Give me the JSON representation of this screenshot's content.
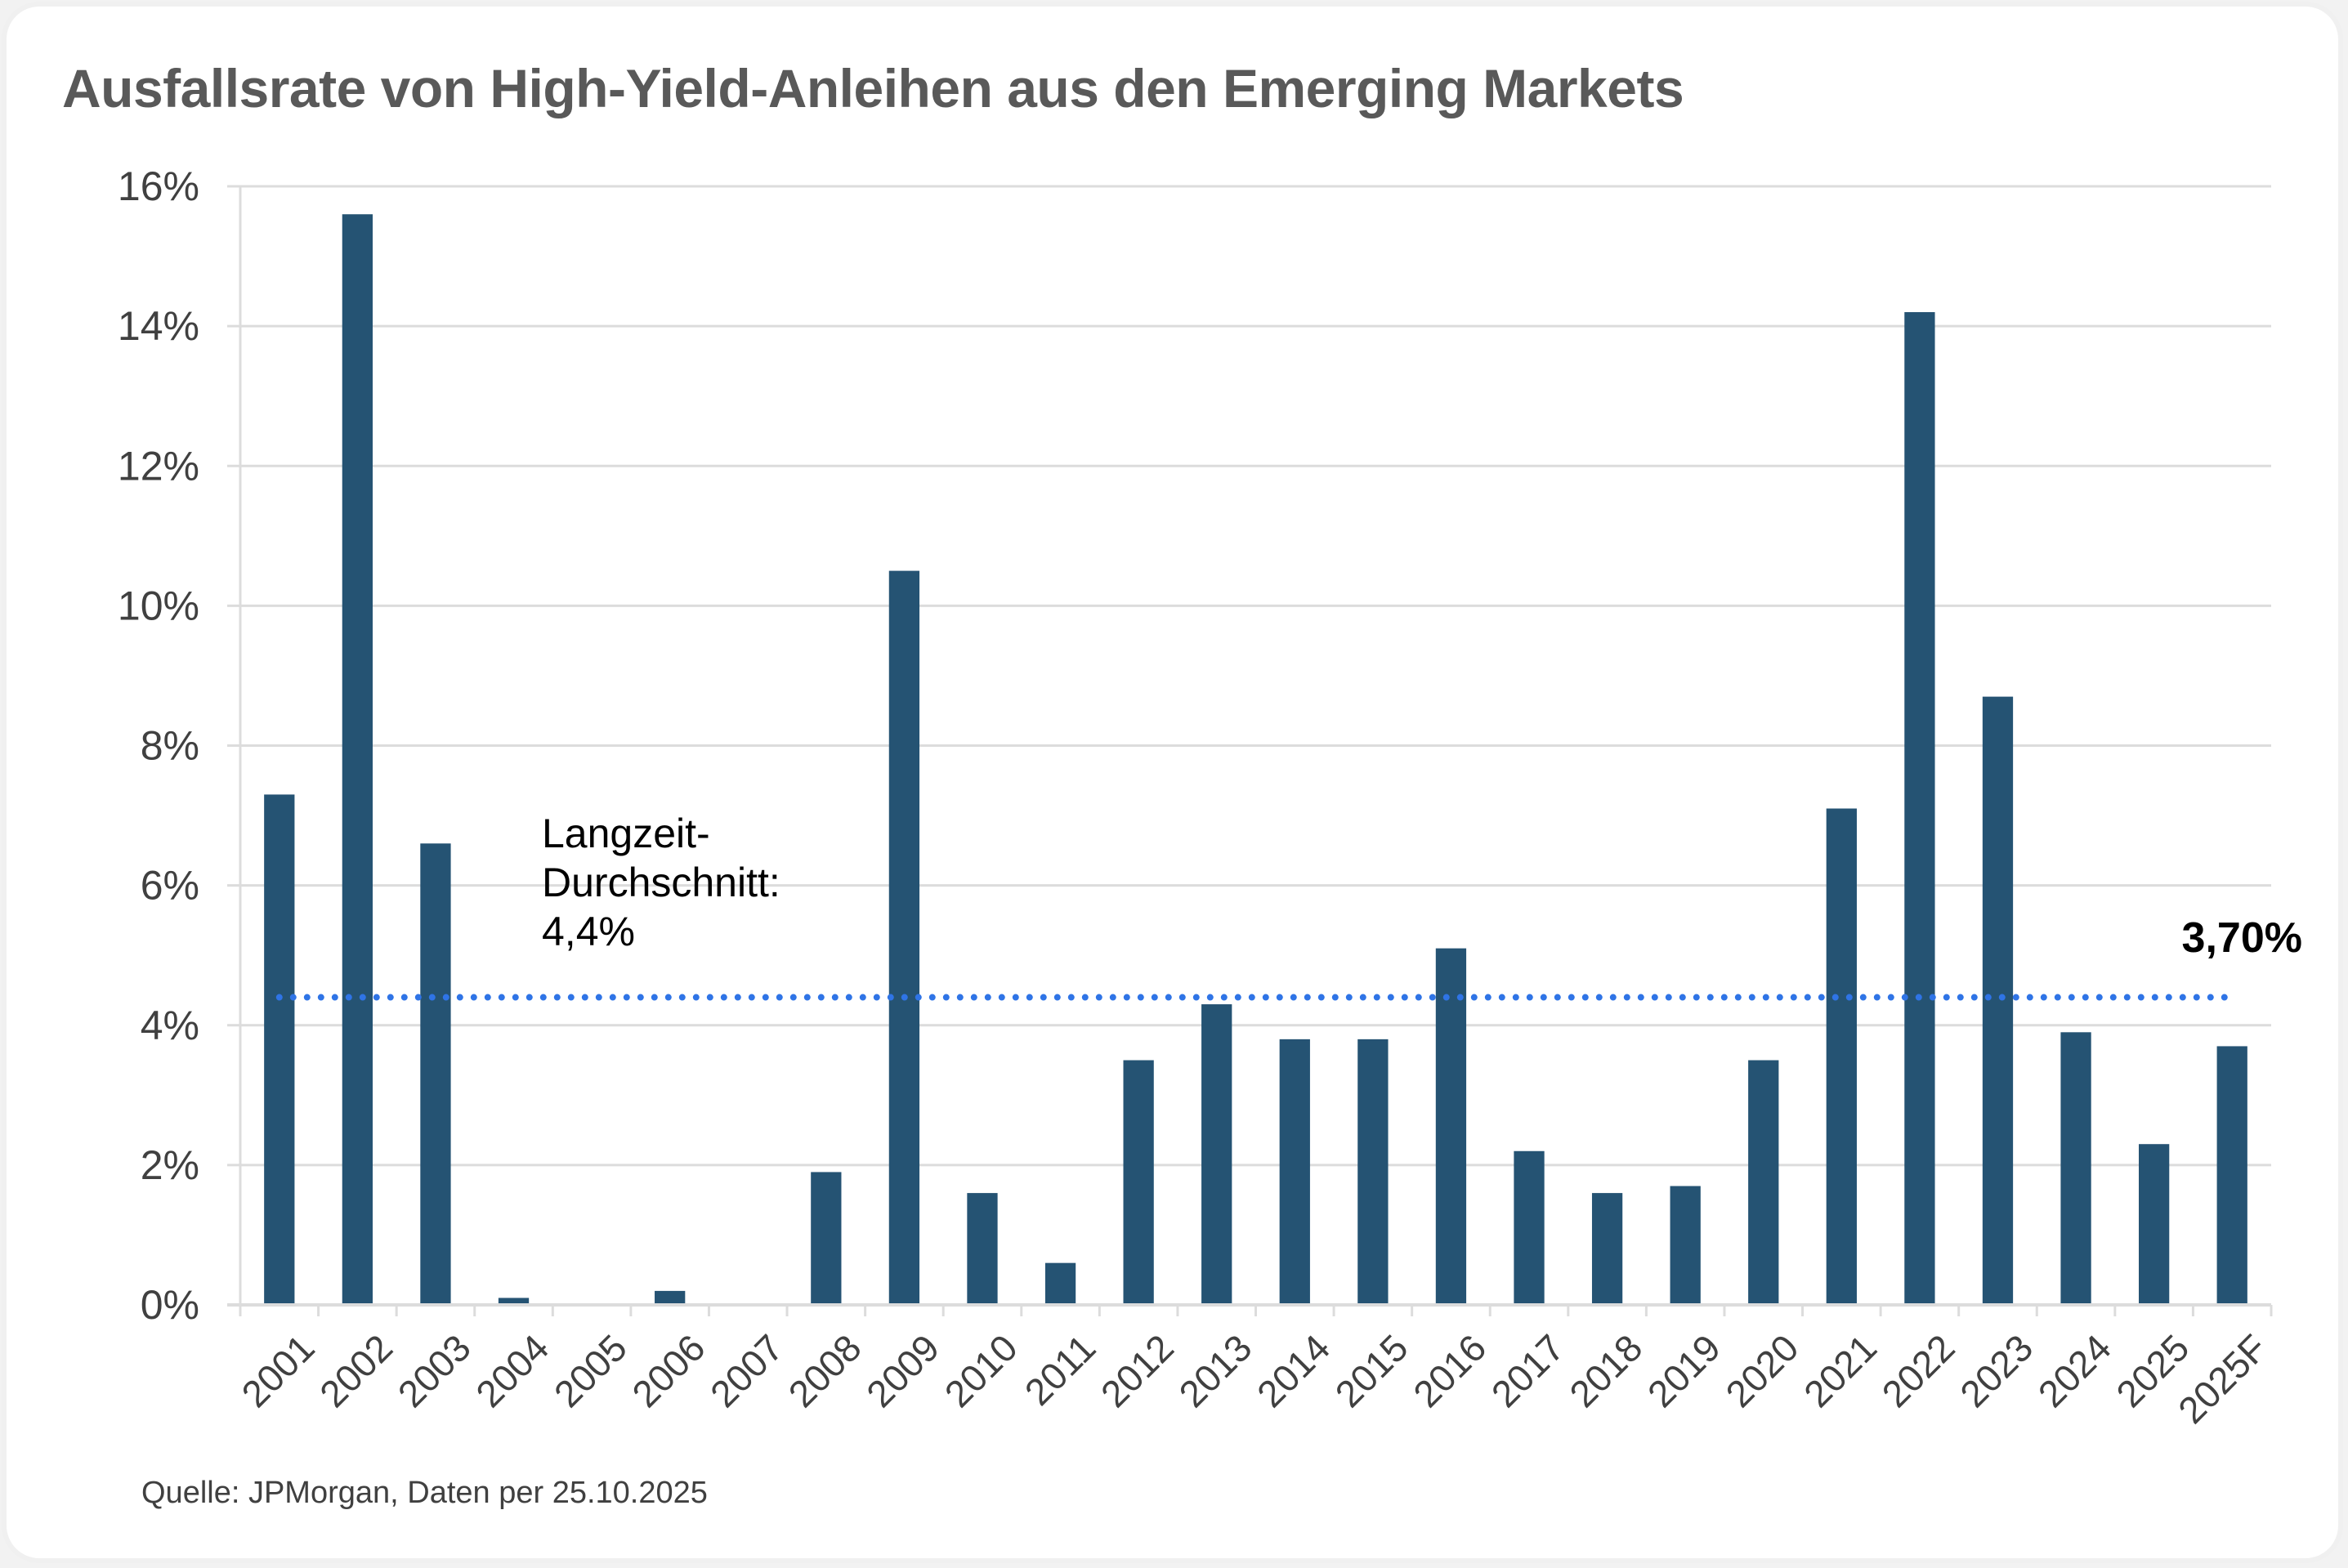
{
  "title": "Ausfallsrate von High-Yield-Anleihen aus den Emerging Markets",
  "source": "Quelle: JPMorgan, Daten per 25.10.2025",
  "colors": {
    "bar": "#255373",
    "average_line": "#2F74E6",
    "grid": "#dcdcdc",
    "axis_text": "#404040",
    "title": "#595959"
  },
  "chart_data": {
    "type": "bar",
    "title": "Ausfallsrate von High-Yield-Anleihen aus den Emerging Markets",
    "xlabel": "",
    "ylabel": "",
    "categories": [
      "2001",
      "2002",
      "2003",
      "2004",
      "2005",
      "2006",
      "2007",
      "2008",
      "2009",
      "2010",
      "2011",
      "2012",
      "2013",
      "2014",
      "2015",
      "2016",
      "2017",
      "2018",
      "2019",
      "2020",
      "2021",
      "2022",
      "2023",
      "2024",
      "2025",
      "2025F"
    ],
    "values": [
      7.3,
      15.6,
      6.6,
      0.1,
      0.0,
      0.2,
      0.0,
      1.9,
      10.5,
      1.6,
      0.6,
      3.5,
      4.3,
      3.8,
      3.8,
      5.1,
      2.2,
      1.6,
      1.7,
      3.5,
      7.1,
      14.2,
      8.7,
      3.9,
      2.3,
      3.7
    ],
    "ylim": [
      0,
      16
    ],
    "yticks": [
      0,
      2,
      4,
      6,
      8,
      10,
      12,
      14,
      16
    ],
    "ytick_labels": [
      "0%",
      "2%",
      "4%",
      "6%",
      "8%",
      "10%",
      "12%",
      "14%",
      "16%"
    ],
    "grid": true,
    "x_tick_rotation": "-45deg",
    "reference_line": {
      "value": 4.4,
      "style": "dotted",
      "label_lines": [
        "Langzeit-",
        "Durchschnitt:",
        "4,4%"
      ]
    },
    "annotations": [
      {
        "text": "3,70%",
        "category": "2025F",
        "bold": true,
        "position": "top-right"
      }
    ]
  }
}
